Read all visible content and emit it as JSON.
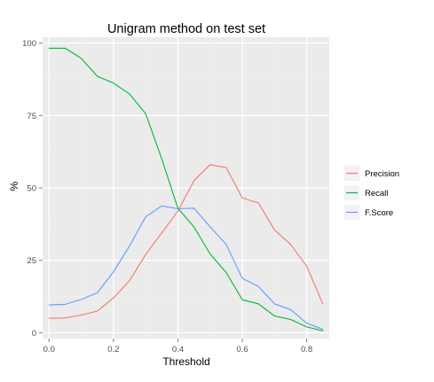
{
  "chart_data": {
    "type": "line",
    "title": "Unigram method on test set",
    "xlabel": "Threshold",
    "ylabel": "%",
    "xlim": [
      -0.02,
      0.87
    ],
    "ylim": [
      -2,
      102
    ],
    "xticks": [
      0.0,
      0.2,
      0.4,
      0.6,
      0.8
    ],
    "xtick_labels": [
      "0.0",
      "0.2",
      "0.4",
      "0.6",
      "0.8"
    ],
    "yticks": [
      0,
      25,
      50,
      75,
      100
    ],
    "ytick_labels": [
      "0",
      "25",
      "50",
      "75",
      "100"
    ],
    "grid": true,
    "legend_position": "right",
    "x": [
      0.0,
      0.05,
      0.1,
      0.15,
      0.2,
      0.25,
      0.3,
      0.35,
      0.4,
      0.45,
      0.5,
      0.55,
      0.6,
      0.65,
      0.7,
      0.75,
      0.8,
      0.85
    ],
    "series": [
      {
        "name": "Precision",
        "color": "#F8766D",
        "values": [
          5,
          5.1,
          6.1,
          7.5,
          12,
          18,
          27,
          34.5,
          42,
          52.5,
          58,
          57,
          46.5,
          44.8,
          35.5,
          30.5,
          23,
          10
        ]
      },
      {
        "name": "Recall",
        "color": "#00BA38",
        "values": [
          98.2,
          98.2,
          94.7,
          88.5,
          86.2,
          82.4,
          75.6,
          60,
          43,
          36.5,
          27.2,
          20.8,
          11.4,
          10,
          5.8,
          4.6,
          2,
          0.7
        ]
      },
      {
        "name": "F.Score",
        "color": "#619CFF",
        "values": [
          9.6,
          9.8,
          11.5,
          13.8,
          21,
          30,
          40,
          43.8,
          42.8,
          43,
          36.6,
          30.5,
          18.8,
          16,
          10,
          8,
          3.3,
          1.2
        ]
      }
    ]
  },
  "colors": {
    "panel_background": "#EBEBEB",
    "grid_major": "#FFFFFF",
    "grid_minor": "#F2F2F2",
    "axis_text": "#4D4D4D",
    "legend_key_background": "#F2F2F2"
  }
}
